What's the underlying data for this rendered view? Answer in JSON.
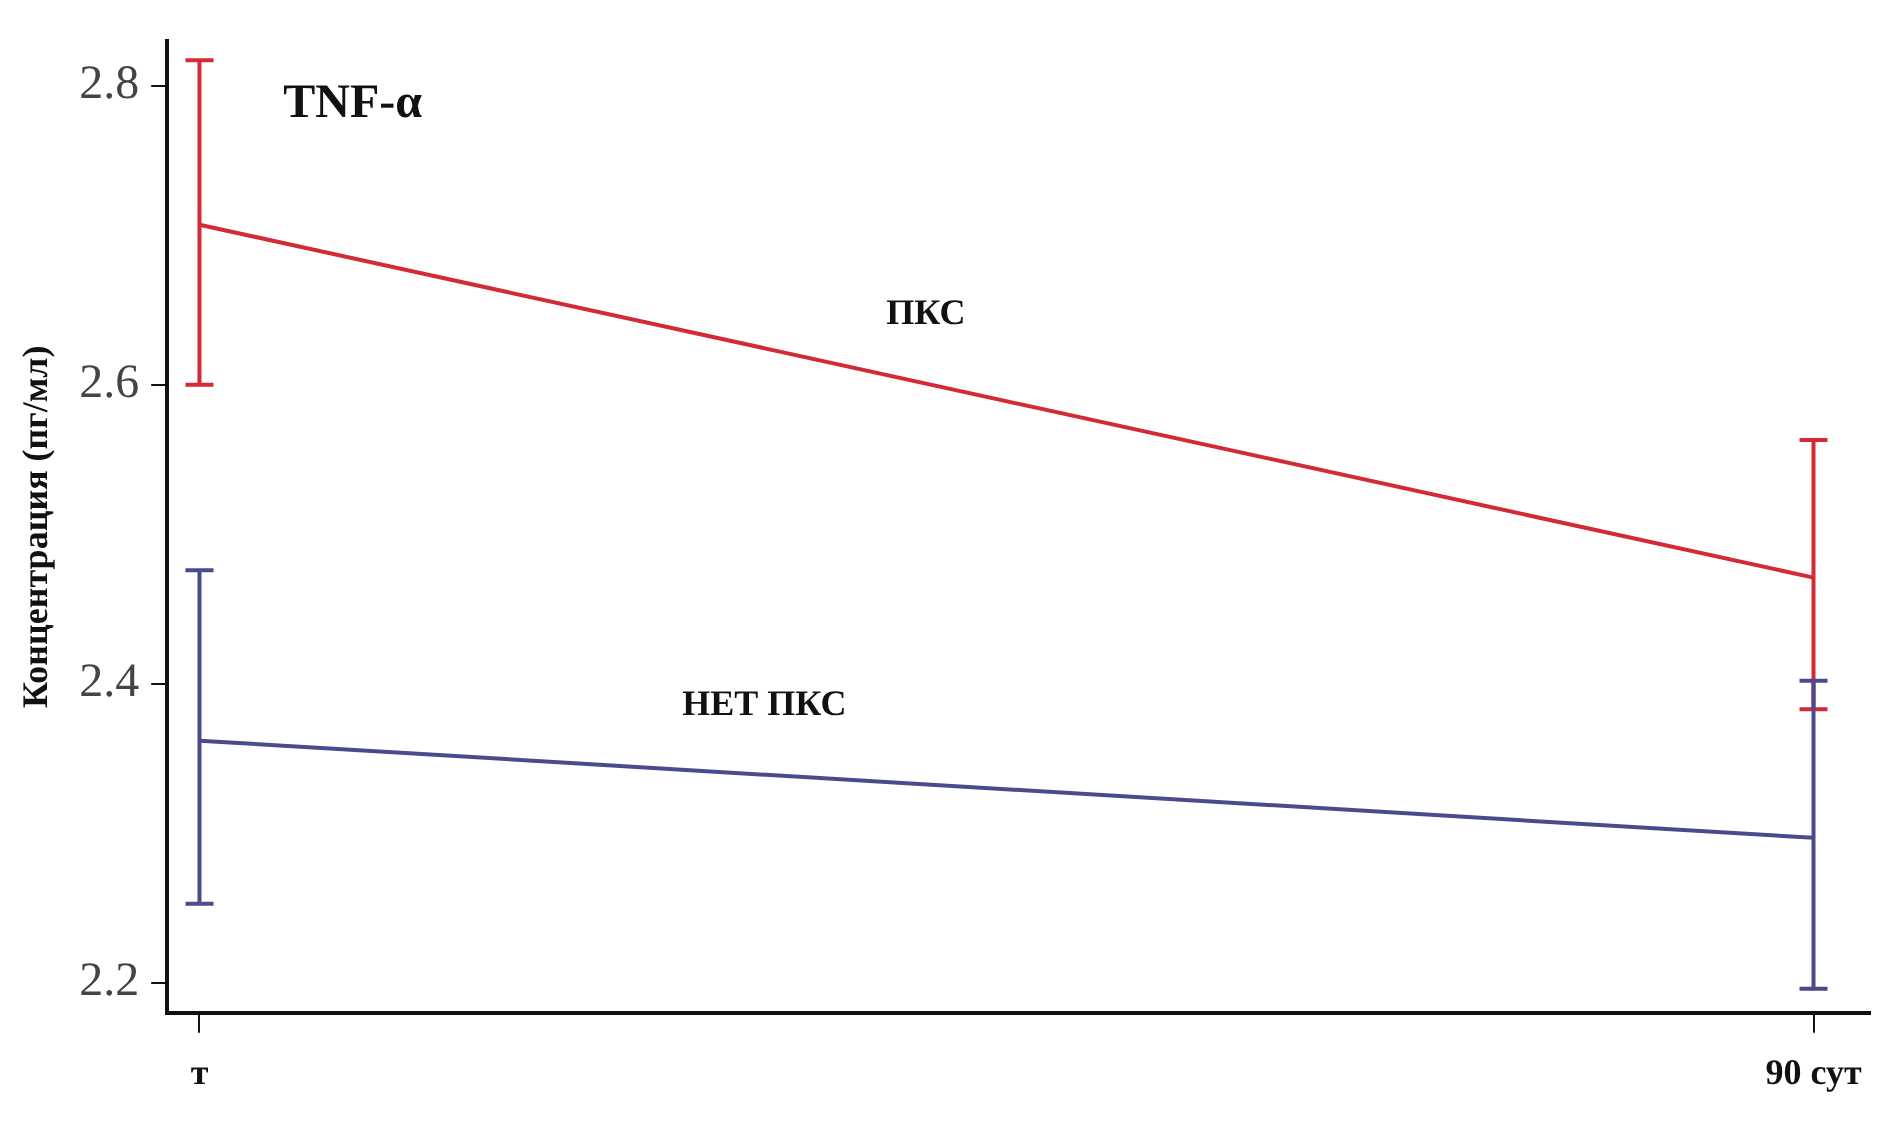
{
  "chart_data": {
    "type": "line",
    "title": "TNF-α",
    "ylabel": "Концентрация (пг/мл)",
    "categories": [
      "т",
      "90 сут"
    ],
    "series": [
      {
        "name": "ПКС",
        "color": "#d42a35",
        "values": [
          2.707,
          2.471
        ],
        "errors": [
          [
            2.6,
            2.817
          ],
          [
            2.383,
            2.563
          ]
        ]
      },
      {
        "name": "НЕТ ПКС",
        "color": "#4a4a8c",
        "values": [
          2.362,
          2.297
        ],
        "errors": [
          [
            2.253,
            2.476
          ],
          [
            2.196,
            2.402
          ]
        ]
      }
    ],
    "ylim": [
      2.18,
      2.83
    ],
    "yticks": [
      2.2,
      2.4,
      2.6,
      2.8
    ],
    "grid": false,
    "legend": false,
    "marker": "none",
    "line_style": "solid"
  }
}
